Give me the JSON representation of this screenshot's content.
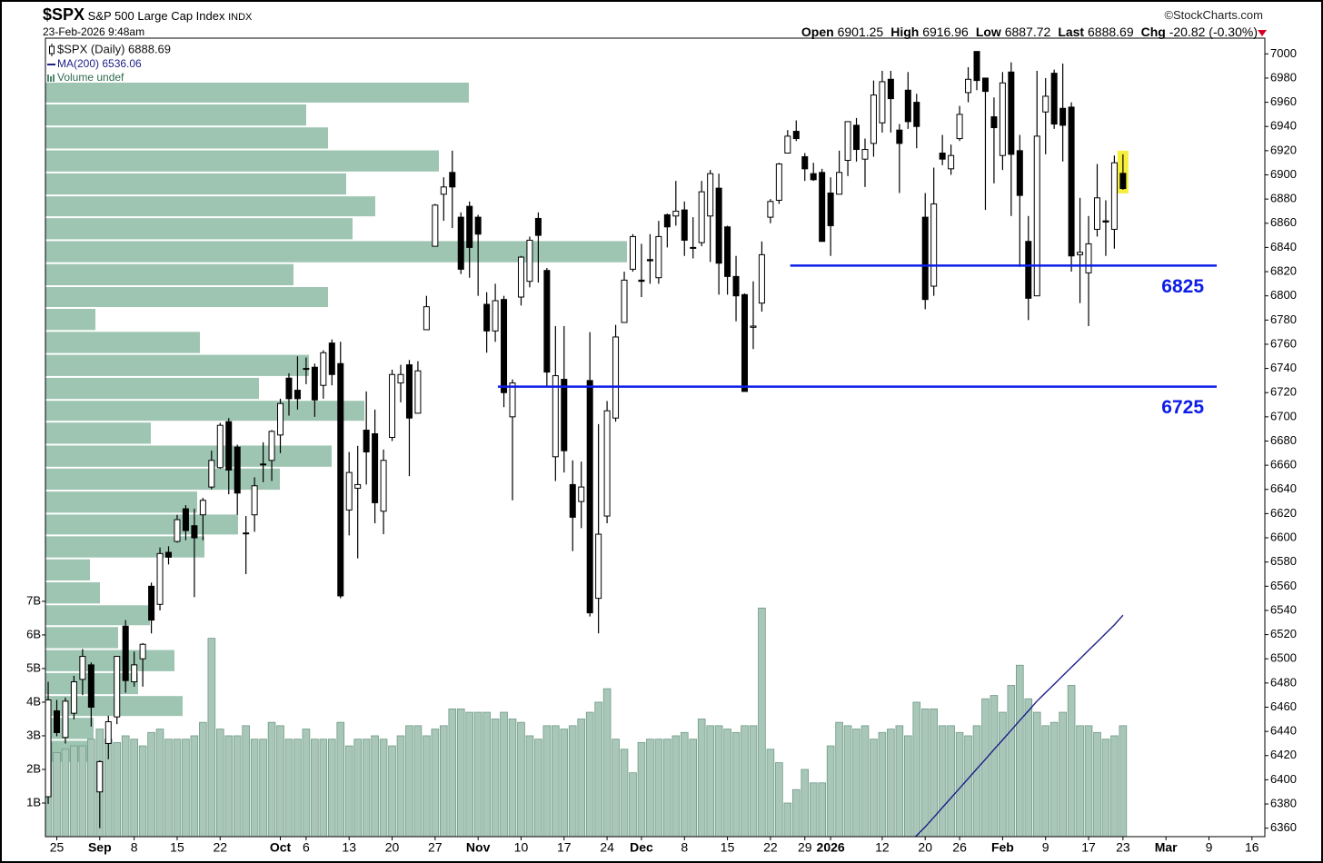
{
  "chart_data": {
    "type": "candlestick",
    "title": "$SPX",
    "subtitle": "S&P 500 Large Cap Index",
    "exchange": "INDX",
    "source": "©StockCharts.com",
    "timestamp": "23-Feb-2026 9:48am",
    "quote": [
      {
        "label": "Open",
        "value": 6901.25
      },
      {
        "label": "High",
        "value": 6916.96
      },
      {
        "label": "Low",
        "value": 6887.72
      },
      {
        "label": "Last",
        "value": 6888.69
      },
      {
        "label": "Chg",
        "value": "-20.82 (-0.30%)"
      }
    ],
    "last_candle_highlight": "#f6ee3c",
    "xlim": [
      -0.32,
      141.5
    ],
    "xticks": [
      {
        "value": 1,
        "label": "25"
      },
      {
        "value": 6,
        "label": "Sep"
      },
      {
        "value": 10,
        "label": "8"
      },
      {
        "value": 15,
        "label": "15"
      },
      {
        "value": 20,
        "label": "22"
      },
      {
        "value": 27,
        "label": "Oct"
      },
      {
        "value": 30,
        "label": "6"
      },
      {
        "value": 35,
        "label": "13"
      },
      {
        "value": 40,
        "label": "20"
      },
      {
        "value": 45,
        "label": "27"
      },
      {
        "value": 50,
        "label": "Nov"
      },
      {
        "value": 55,
        "label": "10"
      },
      {
        "value": 60,
        "label": "17"
      },
      {
        "value": 65,
        "label": "24"
      },
      {
        "value": 69,
        "label": "Dec"
      },
      {
        "value": 74,
        "label": "8"
      },
      {
        "value": 79,
        "label": "15"
      },
      {
        "value": 84,
        "label": "22"
      },
      {
        "value": 88,
        "label": "29"
      },
      {
        "value": 91,
        "label": "2026"
      },
      {
        "value": 97,
        "label": "12"
      },
      {
        "value": 102,
        "label": "20"
      },
      {
        "value": 106,
        "label": "26"
      },
      {
        "value": 111,
        "label": "Feb"
      },
      {
        "value": 116,
        "label": "9"
      },
      {
        "value": 121,
        "label": "17"
      },
      {
        "value": 125,
        "label": "23"
      },
      {
        "value": 130,
        "label": "Mar"
      },
      {
        "value": 135,
        "label": "9"
      },
      {
        "value": 140,
        "label": "16"
      }
    ],
    "ylim": [
      6353,
      7013
    ],
    "yticks": [
      6360,
      6380,
      6400,
      6420,
      6440,
      6460,
      6480,
      6500,
      6520,
      6540,
      6560,
      6580,
      6600,
      6620,
      6640,
      6660,
      6680,
      6700,
      6720,
      6740,
      6760,
      6780,
      6800,
      6820,
      6840,
      6860,
      6880,
      6900,
      6920,
      6940,
      6960,
      6980,
      7000
    ],
    "y2lim": [
      0,
      23750000000.0
    ],
    "y2ticks": [
      {
        "value": 1000000000.0,
        "label": "1B"
      },
      {
        "value": 2000000000.0,
        "label": "2B"
      },
      {
        "value": 3000000000.0,
        "label": "3B"
      },
      {
        "value": 4000000000.0,
        "label": "4B"
      },
      {
        "value": 5000000000.0,
        "label": "5B"
      },
      {
        "value": 6000000000.0,
        "label": "6B"
      },
      {
        "value": 7000000000.0,
        "label": "7B"
      }
    ],
    "series": [
      {
        "name": "$SPX (Daily) 6888.69",
        "color": "#000000",
        "open": [
          6386,
          6457,
          6435,
          6455,
          6483,
          6495,
          6390,
          6430,
          6452,
          6527,
          6481,
          6500,
          6560,
          6545,
          6588,
          6597,
          6624,
          6610,
          6619,
          6642,
          6658,
          6696,
          6675,
          6604,
          6619,
          6661,
          6664,
          6685,
          6732,
          6722,
          6740,
          6741,
          6726,
          6761,
          6744,
          6623,
          6641,
          6689,
          6686,
          6622,
          6683,
          6728,
          6743,
          6703,
          6772,
          6841,
          6884,
          6902,
          6865,
          6874,
          6865,
          6793,
          6771,
          6797,
          6700,
          6799,
          6812,
          6864,
          6821,
          6667,
          6731,
          6644,
          6630,
          6730,
          6550,
          6618,
          6699,
          6778,
          6822,
          6813,
          6830,
          6815,
          6867,
          6866,
          6871,
          6840,
          6844,
          6866,
          6889,
          6857,
          6816,
          6801,
          6774,
          6794,
          6865,
          6879,
          6918,
          6936,
          6915,
          6901,
          6902,
          6885,
          6884,
          6912,
          6941,
          6913,
          6926,
          6943,
          6979,
          6937,
          6970,
          6960,
          6865,
          6808,
          6918,
          6905,
          6930,
          6968,
          7002,
          6980,
          6948,
          6916,
          6985,
          6920,
          6845,
          6800,
          6952,
          6984,
          6955,
          6956,
          6834,
          6819,
          6855,
          6862,
          6855,
          6901.25
        ],
        "high": [
          6481,
          6466,
          6468,
          6486,
          6508,
          6497,
          6416,
          6453,
          6502,
          6532,
          6506,
          6513,
          6563,
          6592,
          6593,
          6619,
          6627,
          6624,
          6633,
          6672,
          6695,
          6699,
          6677,
          6618,
          6650,
          6679,
          6689,
          6715,
          6736,
          6750,
          6749,
          6744,
          6755,
          6764,
          6762,
          6671,
          6676,
          6721,
          6706,
          6673,
          6739,
          6743,
          6747,
          6746,
          6800,
          6876,
          6898,
          6920,
          6869,
          6878,
          6867,
          6803,
          6810,
          6800,
          6731,
          6833,
          6849,
          6869,
          6823,
          6775,
          6775,
          6664,
          6663,
          6770,
          6694,
          6713,
          6776,
          6820,
          6851,
          6843,
          6851,
          6862,
          6868,
          6895,
          6878,
          6865,
          6895,
          6904,
          6901,
          6858,
          6833,
          6802,
          6812,
          6845,
          6880,
          6910,
          6937,
          6945,
          6918,
          6910,
          6905,
          6898,
          6920,
          6944,
          6947,
          6930,
          6978,
          6986,
          6986,
          6942,
          6985,
          6967,
          6885,
          6906,
          6933,
          6925,
          6957,
          6989,
          7002,
          6980,
          6964,
          6985,
          6993,
          6933,
          6866,
          6986,
          6980,
          6987,
          6992,
          6960,
          6881,
          6866,
          6909,
          6879,
          6916,
          6916.96
        ],
        "low": [
          6380,
          6436,
          6430,
          6450,
          6470,
          6444,
          6360,
          6417,
          6446,
          6472,
          6477,
          6477,
          6521,
          6540,
          6578,
          6596,
          6598,
          6551,
          6598,
          6640,
          6657,
          6636,
          6619,
          6570,
          6605,
          6646,
          6647,
          6670,
          6701,
          6706,
          6727,
          6700,
          6715,
          6726,
          6550,
          6602,
          6583,
          6644,
          6612,
          6603,
          6680,
          6712,
          6651,
          6703,
          6772,
          6841,
          6862,
          6856,
          6818,
          6815,
          6800,
          6753,
          6762,
          6708,
          6631,
          6792,
          6807,
          6811,
          6725,
          6647,
          6654,
          6589,
          6608,
          6535,
          6521,
          6612,
          6696,
          6778,
          6820,
          6799,
          6810,
          6810,
          6840,
          6858,
          6833,
          6831,
          6841,
          6828,
          6801,
          6801,
          6779,
          6721,
          6756,
          6787,
          6860,
          6876,
          6918,
          6928,
          6895,
          6895,
          6845,
          6833,
          6884,
          6899,
          6911,
          6890,
          6915,
          6935,
          6935,
          6885,
          6938,
          6922,
          6789,
          6800,
          6908,
          6900,
          6928,
          6960,
          6970,
          6871,
          6893,
          6904,
          6866,
          6824,
          6780,
          6800,
          6917,
          6938,
          6911,
          6820,
          6794,
          6775,
          6849,
          6833,
          6839,
          6887.72
        ],
        "close": [
          6466,
          6439,
          6465,
          6481,
          6502,
          6460,
          6415,
          6448,
          6502,
          6482,
          6495,
          6512,
          6532,
          6587,
          6584,
          6615,
          6606,
          6600,
          6631,
          6664,
          6693,
          6656,
          6637,
          6604,
          6643,
          6661,
          6688,
          6711,
          6715,
          6715,
          6740,
          6714,
          6753,
          6735,
          6552,
          6654,
          6644,
          6671,
          6629,
          6664,
          6735,
          6735,
          6699,
          6738,
          6791,
          6875,
          6890,
          6890,
          6822,
          6840,
          6851,
          6771,
          6796,
          6720,
          6728,
          6832,
          6846,
          6850,
          6737,
          6734,
          6672,
          6617,
          6642,
          6538,
          6603,
          6705,
          6766,
          6813,
          6849,
          6812,
          6829,
          6849,
          6857,
          6870,
          6846,
          6840,
          6886,
          6901,
          6827,
          6816,
          6800,
          6721,
          6775,
          6834,
          6878,
          6909,
          6932,
          6930,
          6905,
          6896,
          6845,
          6858,
          6902,
          6944,
          6921,
          6921,
          6966,
          6977,
          6963,
          6926,
          6944,
          6940,
          6797,
          6876,
          6913,
          6916,
          6950,
          6979,
          6978,
          6969,
          6939,
          6976,
          6917,
          6883,
          6798,
          6932,
          6965,
          6942,
          6941,
          6833,
          6836,
          6843,
          6881,
          6861,
          6910,
          6888.69
        ]
      },
      {
        "name": "MA(200) 6536.06",
        "color": "#1c1f86",
        "values": [
          null,
          null,
          null,
          null,
          null,
          null,
          null,
          null,
          null,
          null,
          null,
          null,
          null,
          null,
          null,
          null,
          null,
          null,
          null,
          null,
          null,
          null,
          null,
          null,
          null,
          null,
          null,
          null,
          null,
          null,
          null,
          null,
          null,
          null,
          null,
          null,
          null,
          null,
          null,
          null,
          null,
          null,
          null,
          null,
          null,
          null,
          null,
          null,
          null,
          null,
          null,
          null,
          null,
          null,
          null,
          null,
          null,
          null,
          null,
          null,
          null,
          null,
          null,
          null,
          null,
          null,
          null,
          null,
          null,
          null,
          null,
          null,
          null,
          null,
          null,
          null,
          null,
          null,
          null,
          null,
          null,
          null,
          null,
          null,
          null,
          null,
          null,
          null,
          null,
          null,
          null,
          null,
          null,
          null,
          null,
          null,
          null,
          null,
          null,
          null,
          6347,
          6354,
          6361,
          6369,
          6377,
          6385,
          6393,
          6401,
          6409,
          6417,
          6425,
          6433,
          6441,
          6449,
          6457,
          6465,
          6472,
          6479,
          6486,
          6493,
          6500,
          6507,
          6514,
          6521,
          6528,
          6536.06
        ]
      },
      {
        "name": "Volume undef",
        "color": "#a9c7b9",
        "axis": "y2",
        "values": [
          2800000000.0,
          2500000000.0,
          2600000000.0,
          2700000000.0,
          2700000000.0,
          2900000000.0,
          3200000000.0,
          2900000000.0,
          2800000000.0,
          3000000000.0,
          2900000000.0,
          2700000000.0,
          3100000000.0,
          3200000000.0,
          2900000000.0,
          2900000000.0,
          2900000000.0,
          3000000000.0,
          3400000000.0,
          5900000000.0,
          3200000000.0,
          3000000000.0,
          3000000000.0,
          3300000000.0,
          2900000000.0,
          2900000000.0,
          3400000000.0,
          3300000000.0,
          2900000000.0,
          2900000000.0,
          3200000000.0,
          2900000000.0,
          2900000000.0,
          2900000000.0,
          3400000000.0,
          2700000000.0,
          2900000000.0,
          2900000000.0,
          3000000000.0,
          2900000000.0,
          2700000000.0,
          3000000000.0,
          3300000000.0,
          3300000000.0,
          3000000000.0,
          3200000000.0,
          3300000000.0,
          3800000000.0,
          3800000000.0,
          3700000000.0,
          3700000000.0,
          3700000000.0,
          3500000000.0,
          3700000000.0,
          3500000000.0,
          3400000000.0,
          3000000000.0,
          2900000000.0,
          3300000000.0,
          3300000000.0,
          3200000000.0,
          3300000000.0,
          3500000000.0,
          3700000000.0,
          4000000000.0,
          4400000000.0,
          2900000000.0,
          2600000000.0,
          1900000000.0,
          2800000000.0,
          2900000000.0,
          2900000000.0,
          2900000000.0,
          3000000000.0,
          3100000000.0,
          2900000000.0,
          3500000000.0,
          3300000000.0,
          3300000000.0,
          3200000000.0,
          3100000000.0,
          3300000000.0,
          3300000000.0,
          6800000000.0,
          2600000000.0,
          2200000000.0,
          1000000000.0,
          1400000000.0,
          2000000000.0,
          1600000000.0,
          1600000000.0,
          2700000000.0,
          3400000000.0,
          3300000000.0,
          3200000000.0,
          3300000000.0,
          2900000000.0,
          3100000000.0,
          3200000000.0,
          3300000000.0,
          3000000000.0,
          4000000000.0,
          3800000000.0,
          3800000000.0,
          3300000000.0,
          3300000000.0,
          3100000000.0,
          3000000000.0,
          3300000000.0,
          4100000000.0,
          4200000000.0,
          3700000000.0,
          4500000000.0,
          5100000000.0,
          4100000000.0,
          3700000000.0,
          3300000000.0,
          3400000000.0,
          3700000000.0,
          4500000000.0,
          3300000000.0,
          3300000000.0,
          3100000000.0,
          2900000000.0,
          3000000000.0,
          3300000000.0
        ]
      }
    ],
    "volume_by_price": {
      "color": "#8dbba4",
      "bins": [
        6414,
        6433,
        6452,
        6470,
        6489,
        6508,
        6527,
        6545,
        6564,
        6583,
        6602,
        6620,
        6639,
        6658,
        6677,
        6696,
        6714,
        6733,
        6752,
        6771,
        6790,
        6808,
        6827,
        6846,
        6865,
        6883,
        6902,
        6921,
        6940,
        6959,
        6977
      ],
      "values": [
        47,
        53,
        151,
        102,
        142,
        80,
        115,
        60,
        49,
        175,
        212,
        167,
        258,
        315,
        116,
        351,
        235,
        290,
        170,
        55,
        311,
        273,
        640,
        338,
        363,
        331,
        433,
        311,
        287,
        466
      ]
    },
    "levels": [
      {
        "value": 6825,
        "span": [
          86.3,
          135.9
        ],
        "color": "#0d1de8"
      },
      {
        "value": 6725,
        "span": [
          52.3,
          135.9
        ],
        "color": "#0d1de8"
      }
    ]
  }
}
